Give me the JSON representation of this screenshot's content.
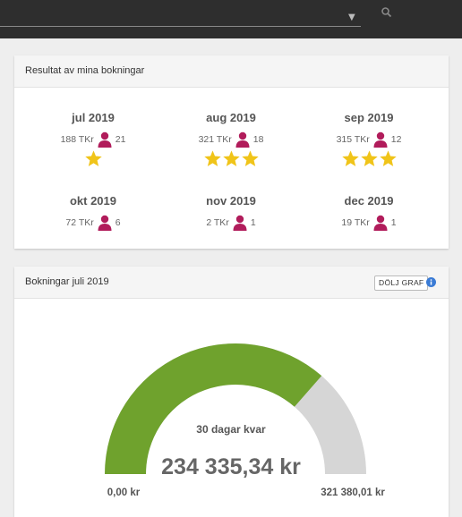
{
  "card1": {
    "title": "Resultat av mina bokningar",
    "months": [
      {
        "name": "jul 2019",
        "revenue": "188 TKr",
        "count": "21",
        "stars": 1
      },
      {
        "name": "aug 2019",
        "revenue": "321 TKr",
        "count": "18",
        "stars": 3
      },
      {
        "name": "sep 2019",
        "revenue": "315 TKr",
        "count": "12",
        "stars": 3
      },
      {
        "name": "okt 2019",
        "revenue": "72 TKr",
        "count": "6",
        "stars": 0
      },
      {
        "name": "nov 2019",
        "revenue": "2 TKr",
        "count": "1",
        "stars": 0
      },
      {
        "name": "dec 2019",
        "revenue": "19 TKr",
        "count": "1",
        "stars": 0
      }
    ]
  },
  "card2": {
    "title": "Bokningar juli 2019",
    "hide_button": "DÖLJ GRAF",
    "gauge": {
      "days_left": "30 dagar kvar",
      "amount": "234 335,34 kr",
      "min_label": "0,00 kr",
      "max_label": "321 380,01 kr",
      "fraction": 0.729
    }
  },
  "colors": {
    "gauge_fill": "#6fa22d",
    "gauge_track": "#d6d6d6",
    "person_icon": "#b11c5b",
    "star": "#f0c419",
    "info": "#3a7bd5"
  }
}
